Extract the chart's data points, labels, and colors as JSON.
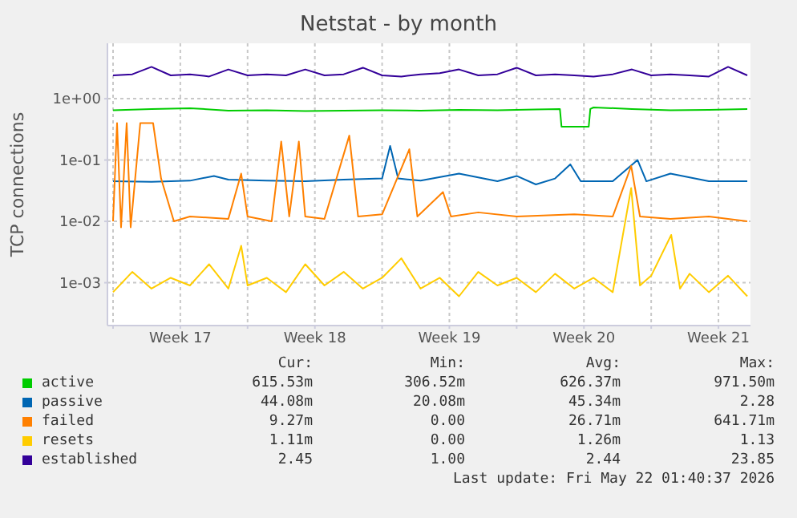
{
  "chart_data": {
    "type": "line",
    "title": "Netstat - by month",
    "ylabel": "TCP connections",
    "log": "y",
    "grid": true,
    "legend": "bottom",
    "xlim": [
      "2026-04-19T17:00",
      "2026-05-23T04:00"
    ],
    "xticks": [
      {
        "value": "2026-04-20",
        "label": null
      },
      {
        "value": "2026-04-23T12:00",
        "label": "Week 17"
      },
      {
        "value": "2026-04-27",
        "label": null
      },
      {
        "value": "2026-04-30T12:00",
        "label": "Week 18"
      },
      {
        "value": "2026-05-04",
        "label": null
      },
      {
        "value": "2026-05-07T12:00",
        "label": "Week 19"
      },
      {
        "value": "2026-05-11",
        "label": null
      },
      {
        "value": "2026-05-14T12:00",
        "label": "Week 20"
      },
      {
        "value": "2026-05-18",
        "label": null
      },
      {
        "value": "2026-05-21T12:00",
        "label": "Week 21"
      }
    ],
    "ylim": [
      0.0002,
      8
    ],
    "yticks": [
      {
        "value": 0.001,
        "label": "1e-03"
      },
      {
        "value": 0.01,
        "label": "1e-02"
      },
      {
        "value": 0.1,
        "label": "1e-01"
      },
      {
        "value": 1,
        "label": "1e+00"
      }
    ],
    "series": [
      {
        "name": "active",
        "color": "#00cc00",
        "x": [
          "2026-04-20",
          "2026-04-22",
          "2026-04-24",
          "2026-04-26",
          "2026-04-28",
          "2026-04-30",
          "2026-05-02",
          "2026-05-04",
          "2026-05-06",
          "2026-05-08",
          "2026-05-10",
          "2026-05-12",
          "2026-05-13T06:00",
          "2026-05-13T08:00",
          "2026-05-14T18:00",
          "2026-05-14T20:00",
          "2026-05-15",
          "2026-05-17",
          "2026-05-19",
          "2026-05-21",
          "2026-05-23"
        ],
        "values": [
          0.65,
          0.68,
          0.7,
          0.64,
          0.65,
          0.63,
          0.64,
          0.65,
          0.64,
          0.66,
          0.65,
          0.67,
          0.68,
          0.35,
          0.35,
          0.68,
          0.72,
          0.68,
          0.65,
          0.66,
          0.68
        ]
      },
      {
        "name": "passive",
        "color": "#0066b3",
        "x": [
          "2026-04-20",
          "2026-04-22",
          "2026-04-24",
          "2026-04-25T06:00",
          "2026-04-26",
          "2026-04-28",
          "2026-04-30",
          "2026-05-02",
          "2026-05-04",
          "2026-05-04T10:00",
          "2026-05-04T20:00",
          "2026-05-06",
          "2026-05-08",
          "2026-05-10",
          "2026-05-11",
          "2026-05-12",
          "2026-05-13",
          "2026-05-13T19:00",
          "2026-05-14T08:00",
          "2026-05-16",
          "2026-05-17T07:00",
          "2026-05-17T18:00",
          "2026-05-19",
          "2026-05-21",
          "2026-05-23"
        ],
        "values": [
          0.045,
          0.044,
          0.046,
          0.055,
          0.048,
          0.046,
          0.045,
          0.048,
          0.05,
          0.17,
          0.05,
          0.046,
          0.06,
          0.045,
          0.055,
          0.04,
          0.05,
          0.085,
          0.045,
          0.045,
          0.1,
          0.045,
          0.06,
          0.045,
          0.045
        ]
      },
      {
        "name": "failed",
        "color": "#ff8000",
        "x": [
          "2026-04-20",
          "2026-04-20T05:00",
          "2026-04-20T10:00",
          "2026-04-20T17:00",
          "2026-04-20T22:00",
          "2026-04-21T10:00",
          "2026-04-22T02:00",
          "2026-04-22T12:00",
          "2026-04-23T04:00",
          "2026-04-24",
          "2026-04-26",
          "2026-04-26T16:00",
          "2026-04-27",
          "2026-04-28T06:00",
          "2026-04-28T18:00",
          "2026-04-29T04:00",
          "2026-04-29T16:00",
          "2026-04-30",
          "2026-05-01",
          "2026-05-02T07:00",
          "2026-05-02T18:00",
          "2026-05-04",
          "2026-05-05T10:00",
          "2026-05-05T20:00",
          "2026-05-07T04:00",
          "2026-05-07T14:00",
          "2026-05-09",
          "2026-05-11",
          "2026-05-14",
          "2026-05-16",
          "2026-05-16T23:00",
          "2026-05-17T10:00",
          "2026-05-19",
          "2026-05-21",
          "2026-05-23"
        ],
        "values": [
          0.01,
          0.4,
          0.008,
          0.4,
          0.008,
          0.4,
          0.4,
          0.05,
          0.01,
          0.012,
          0.011,
          0.06,
          0.012,
          0.01,
          0.2,
          0.012,
          0.2,
          0.012,
          0.011,
          0.25,
          0.012,
          0.013,
          0.15,
          0.012,
          0.03,
          0.012,
          0.014,
          0.012,
          0.013,
          0.012,
          0.08,
          0.012,
          0.011,
          0.012,
          0.01
        ]
      },
      {
        "name": "resets",
        "color": "#ffcc00",
        "x": [
          "2026-04-20",
          "2026-04-21",
          "2026-04-22",
          "2026-04-23",
          "2026-04-24",
          "2026-04-25",
          "2026-04-26",
          "2026-04-26T16:00",
          "2026-04-27",
          "2026-04-28",
          "2026-04-29",
          "2026-04-30",
          "2026-05-01",
          "2026-05-02",
          "2026-05-03",
          "2026-05-04",
          "2026-05-05",
          "2026-05-06",
          "2026-05-07",
          "2026-05-08",
          "2026-05-09",
          "2026-05-10",
          "2026-05-11",
          "2026-05-12",
          "2026-05-13",
          "2026-05-14",
          "2026-05-15",
          "2026-05-16",
          "2026-05-16T23:00",
          "2026-05-17T10:00",
          "2026-05-18",
          "2026-05-19T01:00",
          "2026-05-19T12:00",
          "2026-05-20",
          "2026-05-21",
          "2026-05-22",
          "2026-05-23"
        ],
        "values": [
          0.0007,
          0.0015,
          0.0008,
          0.0012,
          0.0009,
          0.002,
          0.0008,
          0.004,
          0.0009,
          0.0012,
          0.0007,
          0.002,
          0.0009,
          0.0015,
          0.0008,
          0.0012,
          0.0025,
          0.0008,
          0.0012,
          0.0006,
          0.0015,
          0.0009,
          0.0012,
          0.0007,
          0.0014,
          0.0008,
          0.0012,
          0.0007,
          0.035,
          0.0009,
          0.0013,
          0.006,
          0.0008,
          0.0014,
          0.0007,
          0.0013,
          0.0006
        ]
      },
      {
        "name": "established",
        "color": "#330099",
        "x": [
          "2026-04-20",
          "2026-04-21",
          "2026-04-22",
          "2026-04-23",
          "2026-04-24",
          "2026-04-25",
          "2026-04-26",
          "2026-04-27",
          "2026-04-28",
          "2026-04-29",
          "2026-04-30",
          "2026-05-01",
          "2026-05-02",
          "2026-05-03",
          "2026-05-04",
          "2026-05-05",
          "2026-05-06",
          "2026-05-07",
          "2026-05-08",
          "2026-05-09",
          "2026-05-10",
          "2026-05-11",
          "2026-05-12",
          "2026-05-13",
          "2026-05-14",
          "2026-05-15",
          "2026-05-16",
          "2026-05-17",
          "2026-05-18",
          "2026-05-19",
          "2026-05-20",
          "2026-05-21",
          "2026-05-22",
          "2026-05-23"
        ],
        "values": [
          2.4,
          2.5,
          3.3,
          2.4,
          2.5,
          2.3,
          3.0,
          2.4,
          2.5,
          2.4,
          3.0,
          2.4,
          2.5,
          3.2,
          2.4,
          2.3,
          2.5,
          2.6,
          3.0,
          2.4,
          2.5,
          3.2,
          2.4,
          2.5,
          2.4,
          2.3,
          2.5,
          3.0,
          2.4,
          2.5,
          2.4,
          2.3,
          3.3,
          2.4
        ]
      }
    ],
    "annotations": [
      "Cur:",
      "Min:",
      "Avg:",
      "Max:",
      "615.53m",
      "306.52m",
      "626.37m",
      "971.50m",
      "44.08m",
      "20.08m",
      "45.34m",
      "2.28",
      "9.27m",
      "0.00",
      "26.71m",
      "641.71m",
      "1.11m",
      "0.00",
      "1.26m",
      "1.13",
      "2.45",
      "1.00",
      "2.44",
      "23.85",
      "Last update: Fri May 22 01:40:37 2026"
    ]
  }
}
